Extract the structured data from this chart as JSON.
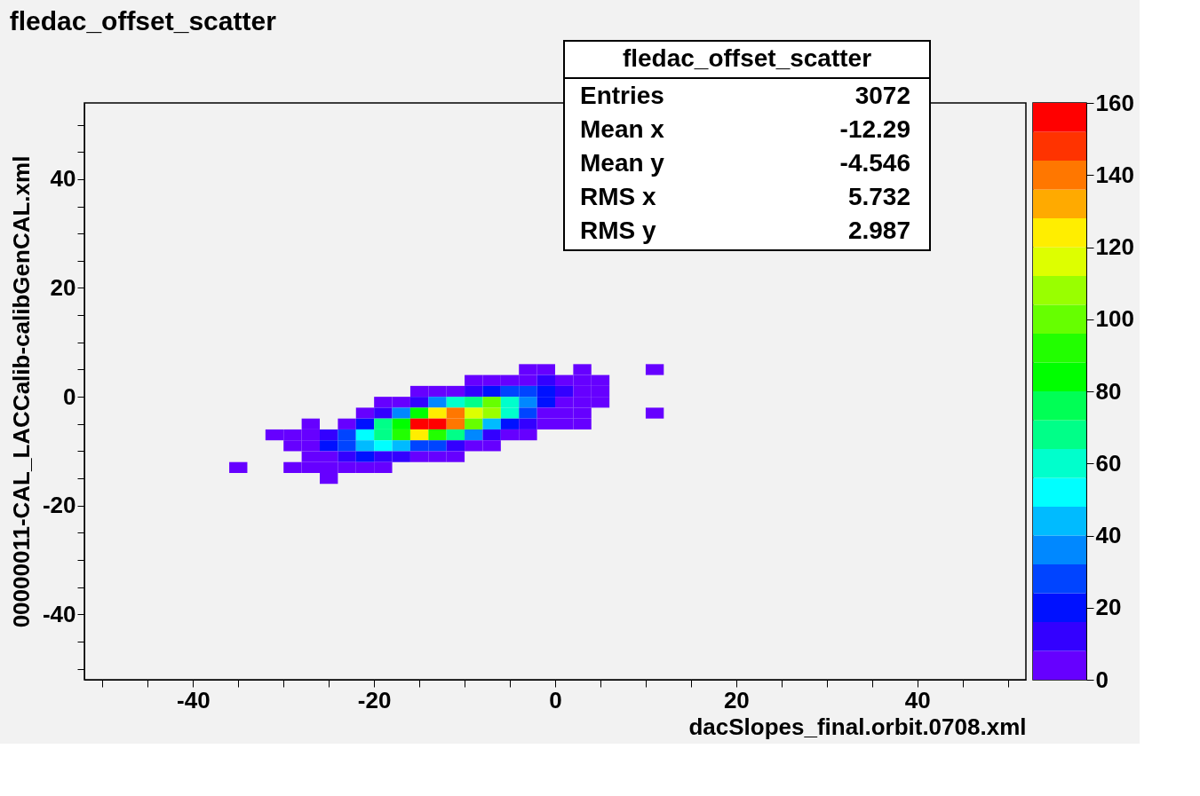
{
  "chart_data": {
    "type": "heatmap",
    "title": "fledac_offset_scatter",
    "xlabel": "dacSlopes_final.orbit.0708.xml",
    "ylabel": "00000011-CAL_LACCalib-calibGenCAL.xml",
    "x": [
      -35,
      -33,
      -31,
      -29,
      -27,
      -25,
      -23,
      -21,
      -19,
      -17,
      -15,
      -13,
      -11,
      -9,
      -7,
      -5,
      -3,
      -1,
      1,
      3,
      5,
      7,
      9,
      11
    ],
    "y": [
      5,
      3,
      1,
      -1,
      -3,
      -5,
      -7,
      -9,
      -11,
      -13,
      -15
    ],
    "cells": [
      [
        null,
        null,
        null,
        null,
        null,
        null,
        null,
        null,
        null,
        null,
        null,
        null,
        null,
        null,
        null,
        null,
        3,
        3,
        null,
        3,
        null,
        null,
        null,
        3
      ],
      [
        null,
        null,
        null,
        null,
        null,
        null,
        null,
        null,
        null,
        null,
        null,
        null,
        null,
        3,
        3,
        3,
        3,
        12,
        3,
        3,
        3,
        null,
        null,
        null
      ],
      [
        null,
        null,
        null,
        null,
        null,
        null,
        null,
        null,
        null,
        null,
        3,
        3,
        3,
        12,
        20,
        28,
        28,
        20,
        12,
        3,
        3,
        null,
        null,
        null
      ],
      [
        null,
        null,
        null,
        null,
        null,
        null,
        null,
        null,
        3,
        3,
        12,
        36,
        60,
        68,
        100,
        60,
        36,
        20,
        3,
        3,
        3,
        null,
        null,
        null
      ],
      [
        null,
        null,
        null,
        null,
        null,
        null,
        null,
        3,
        12,
        36,
        84,
        124,
        140,
        116,
        108,
        60,
        28,
        3,
        3,
        3,
        null,
        null,
        null,
        3
      ],
      [
        null,
        null,
        null,
        null,
        3,
        null,
        3,
        20,
        68,
        84,
        156,
        156,
        140,
        100,
        44,
        20,
        12,
        3,
        3,
        3,
        null,
        null,
        null,
        null
      ],
      [
        null,
        null,
        3,
        3,
        3,
        12,
        28,
        52,
        68,
        92,
        124,
        92,
        68,
        36,
        12,
        3,
        3,
        null,
        null,
        null,
        null,
        null,
        null,
        null
      ],
      [
        null,
        null,
        null,
        3,
        3,
        20,
        28,
        44,
        52,
        44,
        28,
        28,
        12,
        3,
        3,
        null,
        null,
        null,
        null,
        null,
        null,
        null,
        null,
        null
      ],
      [
        null,
        null,
        null,
        null,
        3,
        3,
        12,
        20,
        12,
        12,
        3,
        3,
        3,
        null,
        null,
        null,
        null,
        null,
        null,
        null,
        null,
        null,
        null,
        null
      ],
      [
        3,
        null,
        null,
        3,
        3,
        3,
        3,
        3,
        3,
        null,
        null,
        null,
        null,
        null,
        null,
        null,
        null,
        null,
        null,
        null,
        null,
        null,
        null,
        null
      ],
      [
        null,
        null,
        null,
        null,
        null,
        3,
        null,
        null,
        null,
        null,
        null,
        null,
        null,
        null,
        null,
        null,
        null,
        null,
        null,
        null,
        null,
        null,
        null,
        null
      ]
    ],
    "xlim": [
      -52,
      52
    ],
    "ylim": [
      -52,
      54
    ],
    "xticks": [
      {
        "value": -50,
        "label": null
      },
      {
        "value": -45,
        "label": null
      },
      -40,
      {
        "value": -35,
        "label": null
      },
      {
        "value": -30,
        "label": null
      },
      {
        "value": -25,
        "label": null
      },
      -20,
      {
        "value": -15,
        "label": null
      },
      {
        "value": -10,
        "label": null
      },
      {
        "value": -5,
        "label": null
      },
      0,
      {
        "value": 5,
        "label": null
      },
      {
        "value": 10,
        "label": null
      },
      {
        "value": 15,
        "label": null
      },
      20,
      {
        "value": 25,
        "label": null
      },
      {
        "value": 30,
        "label": null
      },
      {
        "value": 35,
        "label": null
      },
      40,
      {
        "value": 45,
        "label": null
      },
      {
        "value": 50,
        "label": null
      }
    ],
    "yticks": [
      {
        "value": -50,
        "label": null
      },
      {
        "value": -45,
        "label": null
      },
      -40,
      {
        "value": -35,
        "label": null
      },
      {
        "value": -30,
        "label": null
      },
      {
        "value": -25,
        "label": null
      },
      -20,
      {
        "value": -15,
        "label": null
      },
      {
        "value": -10,
        "label": null
      },
      {
        "value": -5,
        "label": null
      },
      0,
      {
        "value": 5,
        "label": null
      },
      {
        "value": 10,
        "label": null
      },
      {
        "value": 15,
        "label": null
      },
      20,
      {
        "value": 25,
        "label": null
      },
      {
        "value": 30,
        "label": null
      },
      {
        "value": 35,
        "label": null
      },
      40,
      {
        "value": 45,
        "label": null
      },
      {
        "value": 50,
        "label": null
      }
    ],
    "clim": [
      0,
      160
    ],
    "cticks": [
      0,
      20,
      40,
      60,
      80,
      100,
      120,
      140,
      160
    ],
    "annotations": [
      "fledac_offset_scatter",
      "Entries 3072",
      "Mean x -12.29",
      "Mean y -4.546",
      "RMS x 5.732",
      "RMS y 2.987"
    ],
    "grid": false,
    "legend": false
  }
}
